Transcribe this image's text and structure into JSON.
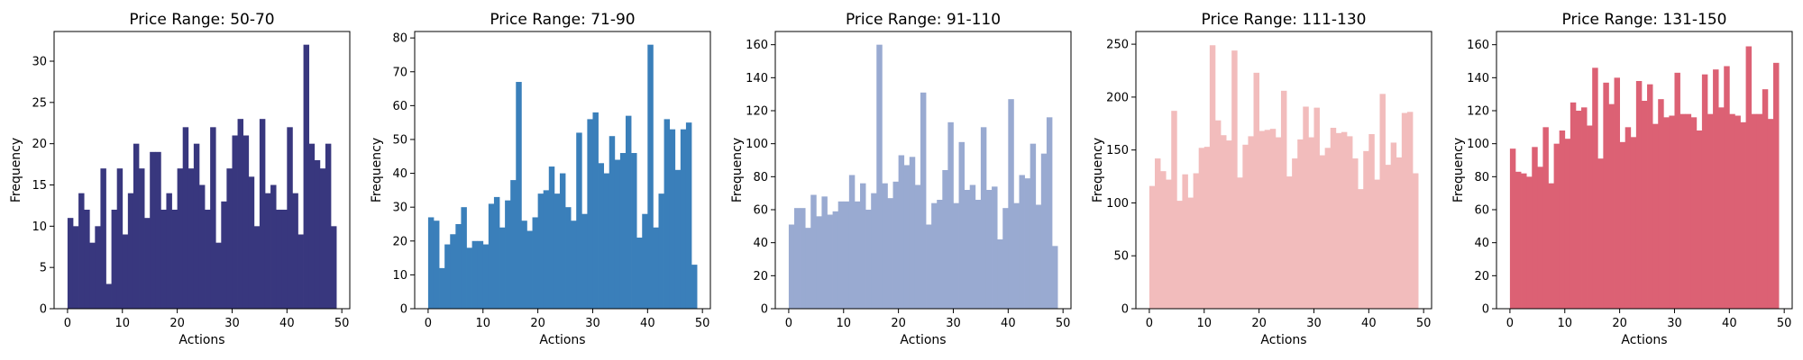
{
  "chart_data": [
    {
      "type": "bar",
      "title": "Price Range: 50-70",
      "xlabel": "Actions",
      "ylabel": "Frequency",
      "color": "#38377e",
      "xlim": [
        -2.45,
        51.45
      ],
      "ylim": [
        0,
        33.6
      ],
      "xticks": [
        0,
        10,
        20,
        30,
        40,
        50
      ],
      "yticks": [
        0,
        5,
        10,
        15,
        20,
        25,
        30
      ],
      "bin_width": 0.98,
      "x": [
        0,
        1,
        2,
        3,
        4,
        5,
        6,
        7,
        8,
        9,
        10,
        11,
        12,
        13,
        14,
        15,
        16,
        17,
        18,
        19,
        20,
        21,
        22,
        23,
        24,
        25,
        26,
        27,
        28,
        29,
        30,
        31,
        32,
        33,
        34,
        35,
        36,
        37,
        38,
        39,
        40,
        41,
        42,
        43,
        44,
        45,
        46,
        47,
        48
      ],
      "values": [
        11,
        10,
        14,
        12,
        8,
        10,
        17,
        3,
        12,
        17,
        9,
        14,
        20,
        17,
        11,
        19,
        19,
        12,
        14,
        12,
        17,
        22,
        17,
        20,
        15,
        12,
        22,
        8,
        13,
        17,
        21,
        23,
        21,
        16,
        10,
        23,
        14,
        15,
        12,
        12,
        22,
        14,
        9,
        32,
        20,
        18,
        17,
        20,
        10
      ]
    },
    {
      "type": "bar",
      "title": "Price Range: 71-90",
      "xlabel": "Actions",
      "ylabel": "Frequency",
      "color": "#3a7fba",
      "xlim": [
        -2.45,
        51.45
      ],
      "ylim": [
        0,
        81.9
      ],
      "xticks": [
        0,
        10,
        20,
        30,
        40,
        50
      ],
      "yticks": [
        0,
        10,
        20,
        30,
        40,
        50,
        60,
        70,
        80
      ],
      "bin_width": 0.98,
      "x": [
        0,
        1,
        2,
        3,
        4,
        5,
        6,
        7,
        8,
        9,
        10,
        11,
        12,
        13,
        14,
        15,
        16,
        17,
        18,
        19,
        20,
        21,
        22,
        23,
        24,
        25,
        26,
        27,
        28,
        29,
        30,
        31,
        32,
        33,
        34,
        35,
        36,
        37,
        38,
        39,
        40,
        41,
        42,
        43,
        44,
        45,
        46,
        47,
        48
      ],
      "values": [
        27,
        26,
        12,
        19,
        22,
        25,
        30,
        18,
        20,
        20,
        19,
        31,
        33,
        24,
        32,
        38,
        67,
        26,
        23,
        27,
        34,
        35,
        42,
        34,
        40,
        30,
        26,
        52,
        28,
        56,
        58,
        43,
        40,
        51,
        44,
        46,
        57,
        46,
        21,
        28,
        78,
        24,
        34,
        56,
        53,
        41,
        53,
        55,
        13
      ]
    },
    {
      "type": "bar",
      "title": "Price Range: 91-110",
      "xlabel": "Actions",
      "ylabel": "Frequency",
      "color": "#99aad1",
      "xlim": [
        -2.45,
        51.45
      ],
      "ylim": [
        0,
        168
      ],
      "xticks": [
        0,
        10,
        20,
        30,
        40,
        50
      ],
      "yticks": [
        0,
        20,
        40,
        60,
        80,
        100,
        120,
        140,
        160
      ],
      "bin_width": 0.98,
      "x": [
        0,
        1,
        2,
        3,
        4,
        5,
        6,
        7,
        8,
        9,
        10,
        11,
        12,
        13,
        14,
        15,
        16,
        17,
        18,
        19,
        20,
        21,
        22,
        23,
        24,
        25,
        26,
        27,
        28,
        29,
        30,
        31,
        32,
        33,
        34,
        35,
        36,
        37,
        38,
        39,
        40,
        41,
        42,
        43,
        44,
        45,
        46,
        47,
        48
      ],
      "values": [
        51,
        61,
        61,
        49,
        69,
        56,
        68,
        57,
        59,
        65,
        65,
        81,
        65,
        76,
        60,
        70,
        160,
        76,
        67,
        77,
        93,
        87,
        92,
        75,
        131,
        51,
        64,
        66,
        84,
        113,
        64,
        101,
        72,
        75,
        66,
        110,
        72,
        74,
        42,
        61,
        127,
        64,
        81,
        79,
        100,
        63,
        94,
        116,
        38
      ]
    },
    {
      "type": "bar",
      "title": "Price Range: 111-130",
      "xlabel": "Actions",
      "ylabel": "Frequency",
      "color": "#f2bcbc",
      "xlim": [
        -2.45,
        51.45
      ],
      "ylim": [
        0,
        262
      ],
      "xticks": [
        0,
        10,
        20,
        30,
        40,
        50
      ],
      "yticks": [
        0,
        50,
        100,
        150,
        200,
        250
      ],
      "bin_width": 0.98,
      "x": [
        0,
        1,
        2,
        3,
        4,
        5,
        6,
        7,
        8,
        9,
        10,
        11,
        12,
        13,
        14,
        15,
        16,
        17,
        18,
        19,
        20,
        21,
        22,
        23,
        24,
        25,
        26,
        27,
        28,
        29,
        30,
        31,
        32,
        33,
        34,
        35,
        36,
        37,
        38,
        39,
        40,
        41,
        42,
        43,
        44,
        45,
        46,
        47,
        48
      ],
      "values": [
        116,
        142,
        130,
        122,
        187,
        102,
        127,
        105,
        128,
        152,
        153,
        249,
        178,
        164,
        159,
        244,
        124,
        155,
        163,
        223,
        168,
        169,
        170,
        162,
        206,
        125,
        142,
        160,
        191,
        162,
        190,
        145,
        152,
        171,
        166,
        167,
        163,
        142,
        113,
        149,
        165,
        122,
        203,
        136,
        157,
        143,
        185,
        186,
        128
      ]
    },
    {
      "type": "bar",
      "title": "Price Range: 131-150",
      "xlabel": "Actions",
      "ylabel": "Frequency",
      "color": "#dc6174",
      "xlim": [
        -2.45,
        51.45
      ],
      "ylim": [
        0,
        168
      ],
      "xticks": [
        0,
        10,
        20,
        30,
        40,
        50
      ],
      "yticks": [
        0,
        20,
        40,
        60,
        80,
        100,
        120,
        140,
        160
      ],
      "bin_width": 0.98,
      "x": [
        0,
        1,
        2,
        3,
        4,
        5,
        6,
        7,
        8,
        9,
        10,
        11,
        12,
        13,
        14,
        15,
        16,
        17,
        18,
        19,
        20,
        21,
        22,
        23,
        24,
        25,
        26,
        27,
        28,
        29,
        30,
        31,
        32,
        33,
        34,
        35,
        36,
        37,
        38,
        39,
        40,
        41,
        42,
        43,
        44,
        45,
        46,
        47,
        48
      ],
      "values": [
        97,
        83,
        82,
        80,
        98,
        86,
        110,
        76,
        100,
        108,
        103,
        125,
        120,
        122,
        111,
        146,
        91,
        137,
        124,
        140,
        101,
        110,
        104,
        138,
        126,
        136,
        112,
        127,
        116,
        117,
        143,
        118,
        118,
        116,
        108,
        142,
        118,
        145,
        122,
        147,
        118,
        117,
        113,
        159,
        118,
        118,
        133,
        115,
        149
      ]
    }
  ]
}
